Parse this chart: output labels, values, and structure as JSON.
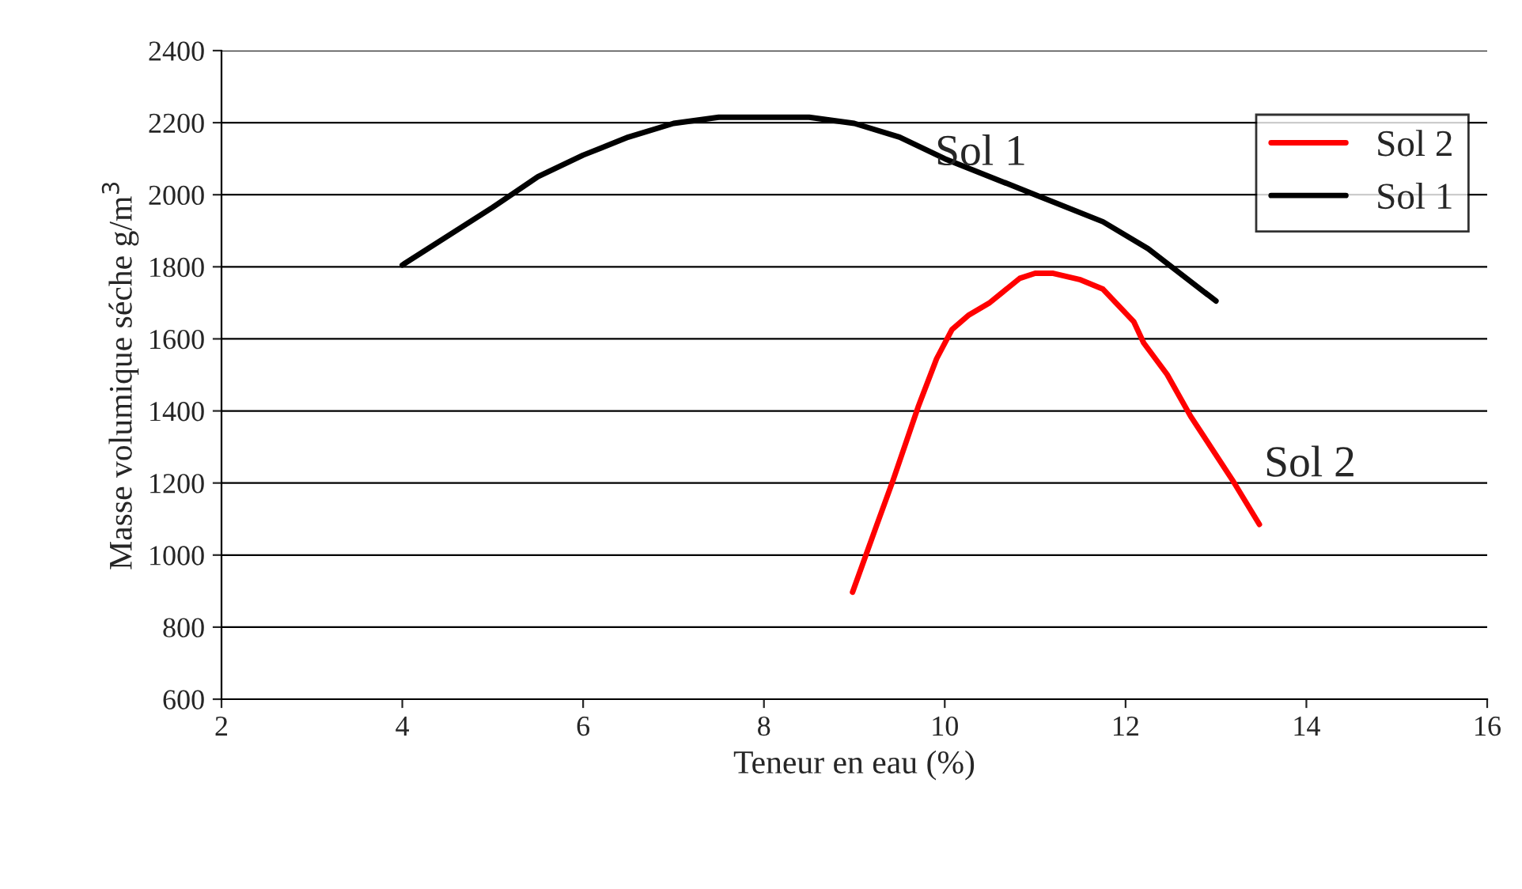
{
  "chart_data": {
    "type": "line",
    "xlabel": "Teneur en eau (%)",
    "ylabel": "Masse volumique séche g/m$^{3}$",
    "xlim": [
      2,
      16
    ],
    "xticks": [
      2,
      4,
      6,
      8,
      10,
      12,
      14,
      16
    ],
    "ylim": [
      600,
      2400
    ],
    "yticks": [
      600,
      800,
      1000,
      1200,
      1400,
      1600,
      1800,
      2000,
      2200,
      2400
    ],
    "grid": "y",
    "legend": "top right",
    "marker": "none",
    "line_style": "solid",
    "series": [
      {
        "name": "Sol 2",
        "color": "#ff0000",
        "x": [
          8.98,
          9.25,
          9.43,
          9.71,
          9.91,
          10.08,
          10.26,
          10.49,
          10.83,
          11.0,
          11.2,
          11.49,
          11.75,
          12.09,
          12.2,
          12.46,
          12.72,
          13.18,
          13.48
        ],
        "values": [
          897,
          1085,
          1209,
          1414,
          1545,
          1626,
          1665,
          1699,
          1768,
          1782,
          1782,
          1765,
          1738,
          1648,
          1589,
          1501,
          1385,
          1209,
          1085
        ]
      },
      {
        "name": "Sol 1",
        "color": "#000000",
        "x": [
          4,
          5,
          5.5,
          6,
          6.5,
          7,
          7.5,
          8.5,
          9,
          9.5,
          10,
          11,
          11.75,
          12.25,
          13
        ],
        "values": [
          1805,
          1965,
          2050,
          2110,
          2160,
          2198,
          2215,
          2215,
          2198,
          2160,
          2100,
          2000,
          1925,
          1850,
          1705
        ]
      }
    ],
    "annotations": [
      "Sol 1",
      "Sol 2"
    ]
  }
}
